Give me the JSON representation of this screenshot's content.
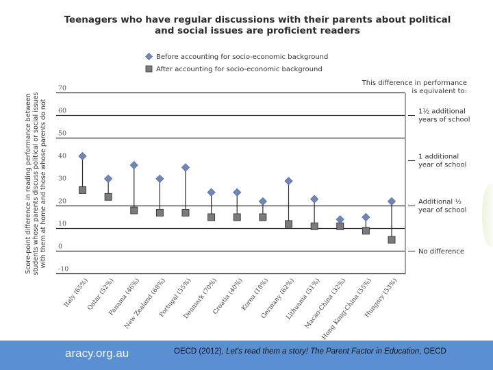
{
  "chart_data": {
    "type": "scatter",
    "subtype": "dumbbell",
    "title": "Teenagers who have regular discussions with their parents about political and social issues are proficient readers",
    "title_lines": [
      "Teenagers who have regular discussions with their parents about political",
      "and social issues are proficient readers"
    ],
    "ylabel_lines": [
      "Score-point difference in reading performance between",
      "students whose parents discuss political or social issues",
      "with them at home and those whose parents do not"
    ],
    "xlabel": "",
    "ylim": [
      -10,
      70
    ],
    "yticks": [
      70,
      60,
      50,
      40,
      30,
      20,
      10,
      0,
      -10
    ],
    "ytick_labels": [
      "70",
      "60",
      "50",
      "40",
      "30",
      "20",
      "10",
      "0",
      "-10"
    ],
    "gridlines_at": [
      70,
      60,
      50,
      20,
      10,
      0,
      -10
    ],
    "legend_position": "top-center",
    "categories": [
      "Italy (65%)",
      "Qatar (52%)",
      "Panama (46%)",
      "New Zealand (68%)",
      "Portugal (55%)",
      "Denmark (70%)",
      "Croatia (40%)",
      "Korea (18%)",
      "Germany (62%)",
      "Lithuania (51%)",
      "Macao-China (32%)",
      "Hong Kong-China (55%)",
      "Hungary (53%)"
    ],
    "series": [
      {
        "name": "Before accounting for socio-economic background",
        "marker": "diamond",
        "color": "#6e86b8",
        "values": [
          42,
          32,
          38,
          32,
          37,
          26,
          26,
          22,
          31,
          23,
          14,
          15,
          22
        ]
      },
      {
        "name": "After accounting for socio-economic background",
        "marker": "square",
        "color": "#7a7a80",
        "values": [
          27,
          24,
          18,
          17,
          17,
          15,
          15,
          15,
          12,
          11,
          11,
          9,
          5
        ]
      }
    ],
    "annotations": {
      "header_lines": [
        "This difference in performance",
        "is equivalent to:"
      ],
      "items": [
        {
          "value": 60,
          "lines": [
            "1½ additional",
            "years of school"
          ]
        },
        {
          "value": 40,
          "lines": [
            "1 additional",
            "year of school"
          ]
        },
        {
          "value": 20,
          "lines": [
            "Additional ½",
            "year of school"
          ]
        },
        {
          "value": 0,
          "lines": [
            "No difference"
          ]
        }
      ]
    }
  },
  "footer": {
    "site": "aracy.org.au",
    "citation_prefix": "OECD (2012), ",
    "citation_title": "Let's read them a story! The Parent Factor in Education",
    "citation_suffix": ", OECD",
    "background_color": "#5b8fd4"
  }
}
